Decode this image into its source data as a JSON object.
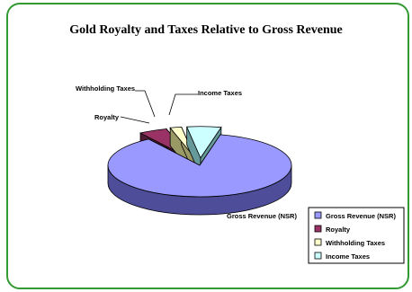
{
  "chart_data": {
    "type": "pie",
    "title": "Gold Royalty and Taxes Relative to Gross Revenue",
    "style": "3d-exploded",
    "slices": [
      {
        "label": "Gross Revenue (NSR)",
        "value": 87,
        "color": "#9999ff",
        "side_color": "#4d4d99"
      },
      {
        "label": "Royalty",
        "value": 5,
        "color": "#993366",
        "side_color": "#4d1a33"
      },
      {
        "label": "Withholding Taxes",
        "value": 2,
        "color": "#ffffcc",
        "side_color": "#999966"
      },
      {
        "label": "Income Taxes",
        "value": 6,
        "color": "#ccffff",
        "side_color": "#669999"
      }
    ],
    "legend_position": "bottom-right",
    "border_color": "#339933"
  }
}
